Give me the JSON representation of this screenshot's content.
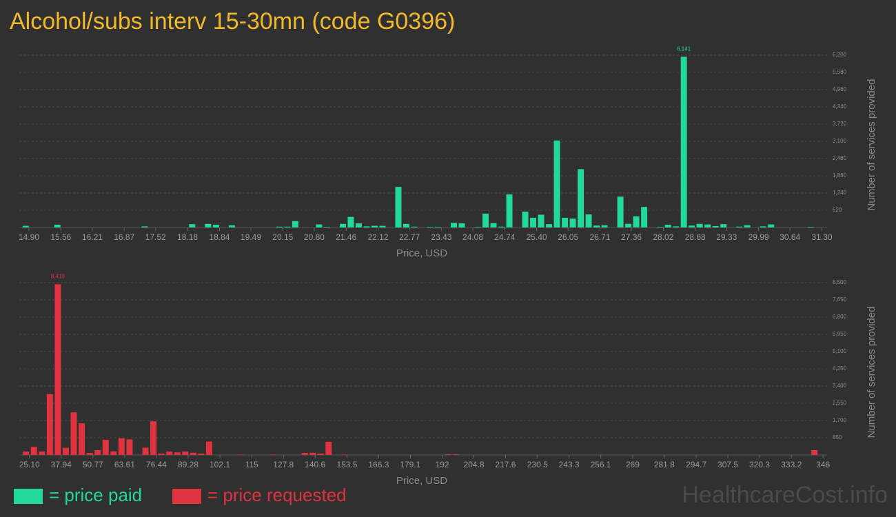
{
  "title": "Alcohol/subs interv 15-30mn (code G0396)",
  "watermark": "HealthcareCost.info",
  "chart_data": [
    {
      "type": "histogram",
      "x_label": "Price, USD",
      "y_label": "Number of services provided",
      "bins": [
        14.75,
        14.914,
        15.078,
        15.242,
        15.406,
        15.57,
        15.734,
        15.898,
        16.062,
        16.226,
        16.39,
        16.554,
        16.718,
        16.882,
        17.046,
        17.21,
        17.374,
        17.538,
        17.702,
        17.866,
        18.03,
        18.194,
        18.358,
        18.522,
        18.686,
        18.85,
        19.014,
        19.178,
        19.342,
        19.506,
        19.67,
        19.834,
        19.998,
        20.162,
        20.326,
        20.49,
        20.654,
        20.818,
        20.982,
        21.146,
        21.31,
        21.474,
        21.638,
        21.802,
        21.966,
        22.13,
        22.294,
        22.458,
        22.622,
        22.786,
        22.95,
        23.114,
        23.278,
        23.442,
        23.606,
        23.77,
        23.934,
        24.098,
        24.262,
        24.426,
        24.59,
        24.754,
        24.918,
        25.082,
        25.246,
        25.41,
        25.574,
        25.738,
        25.902,
        26.066,
        26.23,
        26.394,
        26.558,
        26.722,
        26.886,
        27.05,
        27.214,
        27.378,
        27.542,
        27.706,
        27.87,
        28.034,
        28.198,
        28.362,
        28.526,
        28.69,
        28.854,
        29.018,
        29.182,
        29.346,
        29.51,
        29.674,
        29.838,
        30.002,
        30.166,
        30.33,
        30.494,
        30.658,
        30.822,
        30.986,
        31.15
      ],
      "series": [
        {
          "name": "= price paid",
          "color": "#22d89a",
          "values": [
            60,
            0,
            0,
            0,
            100,
            0,
            0,
            0,
            0,
            0,
            0,
            0,
            0,
            0,
            0,
            40,
            0,
            0,
            0,
            0,
            0,
            120,
            0,
            130,
            100,
            0,
            80,
            0,
            0,
            0,
            0,
            0,
            30,
            30,
            230,
            0,
            0,
            110,
            20,
            0,
            130,
            380,
            150,
            40,
            60,
            60,
            0,
            1460,
            130,
            30,
            0,
            20,
            20,
            0,
            170,
            150,
            0,
            20,
            500,
            160,
            30,
            1190,
            0,
            570,
            350,
            460,
            120,
            3130,
            350,
            320,
            2100,
            470,
            70,
            80,
            0,
            1110,
            130,
            400,
            740,
            0,
            20,
            100,
            40,
            6141,
            70,
            130,
            110,
            50,
            120,
            0,
            30,
            80,
            0,
            40,
            110,
            0,
            0,
            0,
            0,
            20
          ],
          "value_labels": [
            null,
            null,
            null,
            null,
            null,
            null,
            null,
            null,
            null,
            null,
            null,
            null,
            null,
            null,
            null,
            null,
            null,
            null,
            null,
            null,
            null,
            null,
            null,
            null,
            null,
            null,
            null,
            null,
            null,
            null,
            null,
            null,
            null,
            null,
            null,
            null,
            null,
            null,
            null,
            null,
            null,
            null,
            null,
            null,
            null,
            null,
            null,
            null,
            null,
            null,
            null,
            null,
            null,
            null,
            null,
            null,
            null,
            null,
            null,
            null,
            null,
            null,
            null,
            null,
            null,
            null,
            null,
            null,
            null,
            null,
            null,
            null,
            null,
            null,
            null,
            null,
            null,
            null,
            null,
            null,
            null,
            null,
            null,
            "6,141",
            null,
            null,
            null,
            null,
            null,
            null,
            null,
            null,
            null,
            null,
            null,
            null,
            null,
            null,
            null,
            null
          ]
        }
      ],
      "xlim": [
        14.7,
        31.35
      ],
      "xticks": [
        {
          "value": 14.9,
          "label": "14.90"
        },
        15.56,
        16.21,
        16.87,
        17.52,
        18.18,
        18.84,
        19.49,
        20.15,
        {
          "value": 20.8,
          "label": "20.80"
        },
        21.46,
        22.12,
        22.77,
        23.43,
        24.08,
        24.74,
        {
          "value": 25.4,
          "label": "25.40"
        },
        26.05,
        26.71,
        27.36,
        28.02,
        28.68,
        29.33,
        29.99,
        30.64,
        {
          "value": 31.3,
          "label": "31.30"
        }
      ],
      "ylim": [
        0,
        6200
      ],
      "yticks": [
        620,
        {
          "value": 1240,
          "label": "1,240"
        },
        {
          "value": 1860,
          "label": "1,860"
        },
        {
          "value": 2480,
          "label": "2,480"
        },
        {
          "value": 3100,
          "label": "3,100"
        },
        {
          "value": 3720,
          "label": "3,720"
        },
        {
          "value": 4340,
          "label": "4,340"
        },
        {
          "value": 4960,
          "label": "4,960"
        },
        {
          "value": 5580,
          "label": "5,580"
        },
        {
          "value": 6200,
          "label": "6,200"
        }
      ],
      "grid": true
    },
    {
      "type": "histogram",
      "x_label": "Price, USD",
      "y_label": "Number of services provided",
      "bins": [
        22.1,
        25.32,
        28.54,
        31.76,
        34.98,
        38.2,
        41.42,
        44.64,
        47.86,
        51.08,
        54.3,
        57.52,
        60.74,
        63.96,
        67.18,
        70.4,
        73.62,
        76.84,
        80.06,
        83.28,
        86.5,
        89.72,
        92.94,
        96.16,
        99.38,
        102.6,
        105.82,
        109.04,
        112.26,
        115.48,
        118.7,
        121.92,
        125.14,
        128.36,
        131.58,
        134.8,
        138.02,
        141.24,
        144.46,
        147.68,
        150.9,
        154.12,
        157.34,
        160.56,
        163.78,
        167,
        170.22,
        173.44,
        176.66,
        179.88,
        183.1,
        186.32,
        189.54,
        192.76,
        195.98,
        199.2,
        202.42,
        205.64,
        208.86,
        212.08,
        215.3,
        218.52,
        221.74,
        224.96,
        228.18,
        231.4,
        234.62,
        237.84,
        241.06,
        244.28,
        247.5,
        250.72,
        253.94,
        257.16,
        260.38,
        263.6,
        266.82,
        270.04,
        273.26,
        276.48,
        279.7,
        282.92,
        286.14,
        289.36,
        292.58,
        295.8,
        299.02,
        302.24,
        305.46,
        308.68,
        311.9,
        315.12,
        318.34,
        321.56,
        324.78,
        328,
        331.22,
        334.44,
        337.66,
        340.88,
        344.1
      ],
      "series": [
        {
          "name": "= price requested",
          "color": "#e0323f",
          "values": [
            170,
            400,
            170,
            3000,
            8419,
            350,
            2100,
            1560,
            100,
            240,
            750,
            180,
            820,
            770,
            0,
            360,
            1660,
            70,
            170,
            130,
            170,
            110,
            70,
            660,
            0,
            0,
            0,
            20,
            0,
            0,
            0,
            20,
            0,
            0,
            0,
            100,
            110,
            70,
            650,
            0,
            20,
            0,
            0,
            0,
            0,
            0,
            0,
            0,
            0,
            0,
            0,
            0,
            0,
            30,
            30,
            0,
            0,
            0,
            0,
            0,
            0,
            0,
            0,
            0,
            0,
            0,
            0,
            0,
            0,
            0,
            0,
            0,
            0,
            0,
            0,
            0,
            0,
            0,
            0,
            0,
            0,
            0,
            0,
            0,
            0,
            0,
            0,
            0,
            0,
            0,
            0,
            0,
            0,
            0,
            0,
            0,
            0,
            0,
            0,
            240
          ],
          "value_labels": [
            null,
            null,
            null,
            null,
            "8,419",
            null,
            null,
            null,
            null,
            null,
            null,
            null,
            null,
            null,
            null,
            null,
            null,
            null,
            null,
            null,
            null,
            null,
            null,
            null,
            null,
            null,
            null,
            null,
            null,
            null,
            null,
            null,
            null,
            null,
            null,
            null,
            null,
            null,
            null,
            null,
            null,
            null,
            null,
            null,
            null,
            null,
            null,
            null,
            null,
            null,
            null,
            null,
            null,
            null,
            null,
            null,
            null,
            null,
            null,
            null,
            null,
            null,
            null,
            null,
            null,
            null,
            null,
            null,
            null,
            null,
            null,
            null,
            null,
            null,
            null,
            null,
            null,
            null,
            null,
            null,
            null,
            null,
            null,
            null,
            null,
            null,
            null,
            null,
            null,
            null,
            null,
            null,
            null,
            null,
            null,
            null,
            null,
            null,
            null,
            null
          ]
        }
      ],
      "xlim": [
        21.0,
        346.5
      ],
      "xticks": [
        {
          "value": 25.1,
          "label": "25.10"
        },
        37.94,
        50.77,
        63.61,
        76.44,
        89.28,
        102.1,
        115,
        127.8,
        140.6,
        153.5,
        166.3,
        179.1,
        192,
        204.8,
        217.6,
        230.5,
        243.3,
        256.1,
        269,
        281.8,
        294.7,
        307.5,
        320.3,
        333.2,
        346
      ],
      "ylim": [
        0,
        8500
      ],
      "yticks": [
        850,
        {
          "value": 1700,
          "label": "1,700"
        },
        {
          "value": 2550,
          "label": "2,550"
        },
        {
          "value": 3400,
          "label": "3,400"
        },
        {
          "value": 4250,
          "label": "4,250"
        },
        {
          "value": 5100,
          "label": "5,100"
        },
        {
          "value": 5950,
          "label": "5,950"
        },
        {
          "value": 6800,
          "label": "6,800"
        },
        {
          "value": 7650,
          "label": "7,650"
        },
        {
          "value": 8500,
          "label": "8,500"
        }
      ],
      "grid": true
    }
  ]
}
